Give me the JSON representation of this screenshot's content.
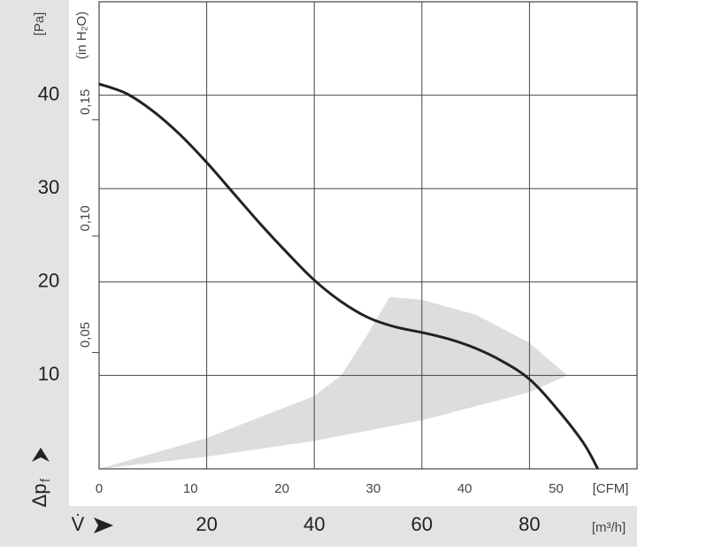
{
  "chart_data": {
    "type": "line",
    "y_unit": "[Pa]",
    "y2_unit": "(in H₂O)",
    "y_label": "Δp",
    "y_label_sub": "f",
    "x_label": "V̇",
    "x2_unit": "[CFM]",
    "x_unit": "[m³/h]",
    "xlim": [
      0,
      100
    ],
    "xticks": [
      20,
      40,
      60,
      80
    ],
    "x2lim": [
      0,
      58.86
    ],
    "x2ticks": [
      0,
      10,
      20,
      30,
      40,
      50
    ],
    "ylim": [
      0,
      50
    ],
    "yticks": [
      10,
      20,
      30,
      40
    ],
    "y2lim": [
      0,
      0.2007
    ],
    "y2ticks": [
      {
        "value": 0.05,
        "label": "0,05"
      },
      {
        "value": 0.1,
        "label": "0,10"
      },
      {
        "value": 0.15,
        "label": "0,15"
      }
    ],
    "grid": true,
    "series": [
      {
        "color": "#222222",
        "x": [
          0,
          5,
          10,
          15,
          20,
          25,
          30,
          35,
          40,
          45,
          50,
          55,
          60,
          65,
          70,
          75,
          80,
          85,
          90,
          92.7
        ],
        "values": [
          41.2,
          40.2,
          38.3,
          35.8,
          32.8,
          29.5,
          26.2,
          23.1,
          20.2,
          17.9,
          16.2,
          15.2,
          14.6,
          13.9,
          12.9,
          11.5,
          9.6,
          6.5,
          2.8,
          0
        ]
      }
    ],
    "region": {
      "color": "#dddddd",
      "x": [
        0,
        20,
        40,
        60,
        80,
        87,
        80,
        70,
        60,
        54,
        50,
        45,
        40,
        20,
        0
      ],
      "values": [
        0,
        1.3,
        3.0,
        5.2,
        8.2,
        10,
        13.5,
        16.5,
        18.1,
        18.4,
        14.5,
        10,
        7.8,
        3.3,
        0
      ]
    }
  }
}
